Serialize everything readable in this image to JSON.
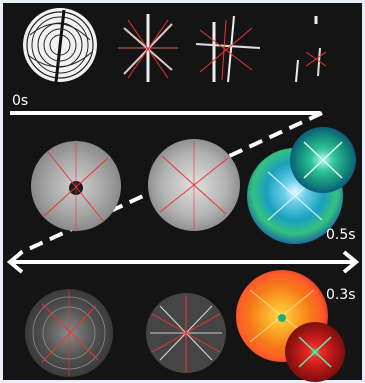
{
  "labels": {
    "row1_time": "0s",
    "row2_time": "0.5s",
    "row3_time": "0.3s"
  },
  "colors": {
    "background": "#141414",
    "border": "#e9eef8",
    "timeline": "#ffffff",
    "radial_lines": "#e53b3b"
  },
  "panels": [
    {
      "row": 1,
      "items": [
        "circular-pattern",
        "star-pattern",
        "star-pattern",
        "sparse-pattern"
      ]
    },
    {
      "row": 2,
      "items": [
        "gray-disk",
        "gray-disk",
        "blue-green-disk-pair"
      ]
    },
    {
      "row": 3,
      "items": [
        "gray-disk",
        "gray-burst",
        "red-orange-disk-pair"
      ]
    }
  ]
}
